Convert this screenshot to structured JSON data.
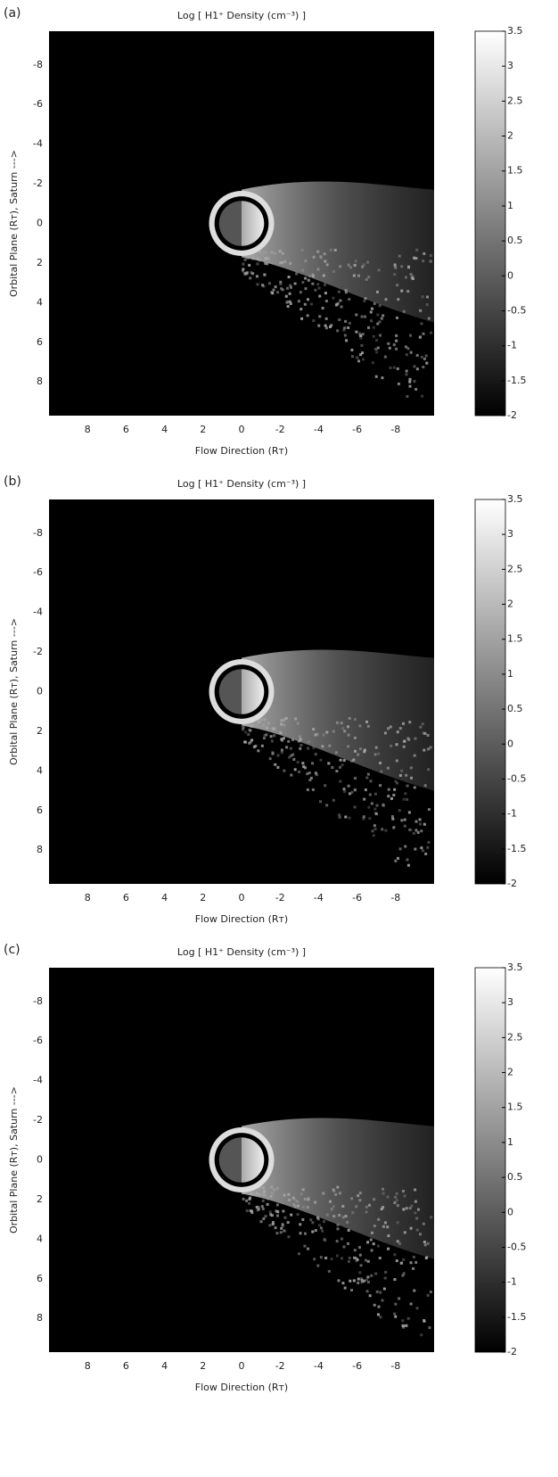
{
  "chart_data": [
    {
      "type": "heatmap",
      "panel": "(a)",
      "title": "Log [ H1⁺ Density (cm⁻³) ]",
      "xlabel": "Flow Direction (Rᴛ)",
      "ylabel": "Orbital Plane (Rᴛ), Saturn --->",
      "xlim": [
        10,
        -10
      ],
      "ylim": [
        -9.7,
        9.7
      ],
      "xticks": [
        8,
        6,
        4,
        2,
        0,
        -2,
        -4,
        -6,
        -8
      ],
      "yticks": [
        -8,
        -6,
        -4,
        -2,
        0,
        2,
        4,
        6,
        8
      ],
      "clim": [
        -2,
        3.5
      ],
      "cticks": [
        3.5,
        3,
        2.5,
        2,
        1.5,
        1,
        0.5,
        0,
        -0.5,
        -1,
        -1.5,
        -2
      ]
    },
    {
      "type": "heatmap",
      "panel": "(b)",
      "title": "Log [ H1⁺ Density (cm⁻³) ]",
      "xlabel": "Flow Direction (Rᴛ)",
      "ylabel": "Orbital Plane (Rᴛ), Saturn --->",
      "xlim": [
        10,
        -10
      ],
      "ylim": [
        -9.7,
        9.7
      ],
      "xticks": [
        8,
        6,
        4,
        2,
        0,
        -2,
        -4,
        -6,
        -8
      ],
      "yticks": [
        -8,
        -6,
        -4,
        -2,
        0,
        2,
        4,
        6,
        8
      ],
      "clim": [
        -2,
        3.5
      ],
      "cticks": [
        3.5,
        3,
        2.5,
        2,
        1.5,
        1,
        0.5,
        0,
        -0.5,
        -1,
        -1.5,
        -2
      ]
    },
    {
      "type": "heatmap",
      "panel": "(c)",
      "title": "Log [ H1⁺ Density (cm⁻³) ]",
      "xlabel": "Flow Direction (Rᴛ)",
      "ylabel": "Orbital Plane (Rᴛ), Saturn --->",
      "xlim": [
        10,
        -10
      ],
      "ylim": [
        -9.7,
        9.7
      ],
      "xticks": [
        8,
        6,
        4,
        2,
        0,
        -2,
        -4,
        -6,
        -8
      ],
      "yticks": [
        -8,
        -6,
        -4,
        -2,
        0,
        2,
        4,
        6,
        8
      ],
      "clim": [
        -2,
        3.5
      ],
      "cticks": [
        3.5,
        3,
        2.5,
        2,
        1.5,
        1,
        0.5,
        0,
        -0.5,
        -1,
        -1.5,
        -2
      ]
    }
  ]
}
